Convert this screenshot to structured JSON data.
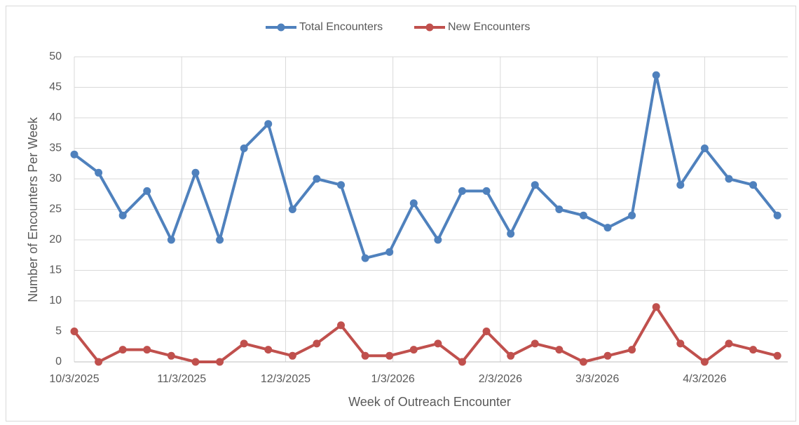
{
  "chart_data": {
    "type": "line",
    "x_label": "Week of Outreach Encounter",
    "y_label": "Number of Encounters Per Week",
    "x": [
      "2025-10-03",
      "2025-10-10",
      "2025-10-17",
      "2025-10-24",
      "2025-10-31",
      "2025-11-07",
      "2025-11-14",
      "2025-11-21",
      "2025-11-28",
      "2025-12-05",
      "2025-12-12",
      "2025-12-19",
      "2025-12-26",
      "2026-01-02",
      "2026-01-09",
      "2026-01-16",
      "2026-01-23",
      "2026-01-30",
      "2026-02-06",
      "2026-02-13",
      "2026-02-20",
      "2026-02-27",
      "2026-03-06",
      "2026-03-13",
      "2026-03-20",
      "2026-03-27",
      "2026-04-03",
      "2026-04-10",
      "2026-04-17",
      "2026-04-24"
    ],
    "series": [
      {
        "name": "Total Encounters",
        "color": "#4f81bd",
        "values": [
          34,
          31,
          24,
          28,
          20,
          31,
          20,
          35,
          39,
          25,
          30,
          29,
          17,
          18,
          26,
          20,
          28,
          28,
          21,
          29,
          25,
          24,
          22,
          24,
          47,
          29,
          35,
          30,
          29,
          24
        ]
      },
      {
        "name": "New Encounters",
        "color": "#c0504d",
        "values": [
          5,
          0,
          2,
          2,
          1,
          0,
          0,
          3,
          2,
          1,
          3,
          6,
          1,
          1,
          2,
          3,
          0,
          5,
          1,
          3,
          2,
          0,
          1,
          2,
          9,
          3,
          0,
          3,
          2,
          1
        ]
      }
    ],
    "xlim": [
      "2025-10-03",
      "2026-04-27"
    ],
    "xticks": [
      {
        "value": "2025-10-03",
        "label": "10/3/2025"
      },
      {
        "value": "2025-11-03",
        "label": "11/3/2025"
      },
      {
        "value": "2025-12-03",
        "label": "12/3/2025"
      },
      {
        "value": "2026-01-03",
        "label": "1/3/2026"
      },
      {
        "value": "2026-02-03",
        "label": "2/3/2026"
      },
      {
        "value": "2026-03-03",
        "label": "3/3/2026"
      },
      {
        "value": "2026-04-03",
        "label": "4/3/2026"
      }
    ],
    "ylim": [
      0,
      50
    ],
    "yticks": [
      0,
      5,
      10,
      15,
      20,
      25,
      30,
      35,
      40,
      45,
      50
    ],
    "grid": true,
    "legend": "top"
  }
}
